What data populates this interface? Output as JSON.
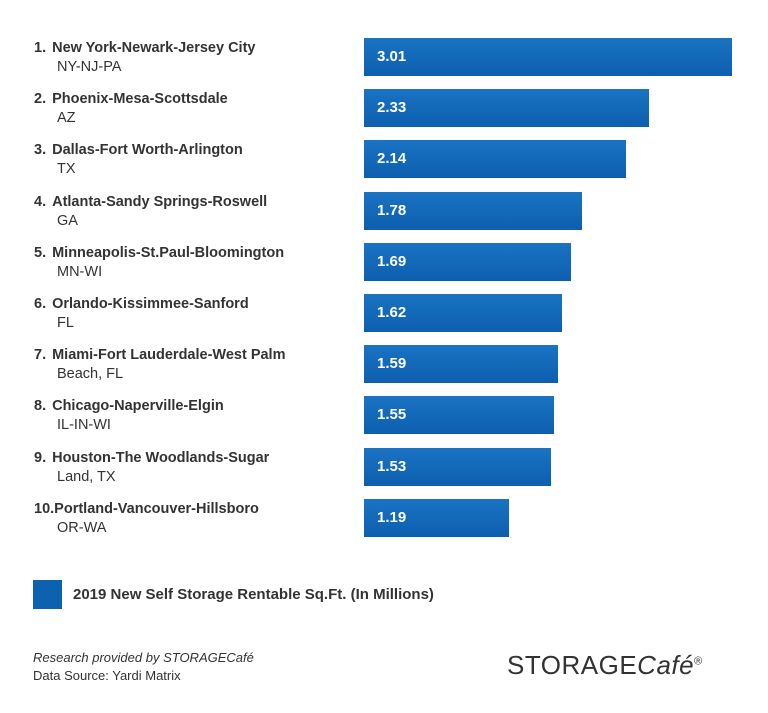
{
  "chart_data": {
    "type": "bar",
    "orientation": "horizontal",
    "categories": [
      {
        "rank": "1.",
        "name": "New York-Newark-Jersey City",
        "sub": "NY-NJ-PA"
      },
      {
        "rank": "2.",
        "name": "Phoenix-Mesa-Scottsdale",
        "sub": "AZ"
      },
      {
        "rank": "3.",
        "name": "Dallas-Fort Worth-Arlington",
        "sub": "TX"
      },
      {
        "rank": "4.",
        "name": "Atlanta-Sandy Springs-Roswell",
        "sub": "GA"
      },
      {
        "rank": "5.",
        "name": "Minneapolis-St.Paul-Bloomington",
        "sub": "MN-WI"
      },
      {
        "rank": "6.",
        "name": "Orlando-Kissimmee-Sanford",
        "sub": "FL"
      },
      {
        "rank": "7.",
        "name": "Miami-Fort Lauderdale-West Palm",
        "sub": "Beach, FL"
      },
      {
        "rank": "8.",
        "name": "Chicago-Naperville-Elgin",
        "sub": "IL-IN-WI"
      },
      {
        "rank": "9.",
        "name": "Houston-The Woodlands-Sugar",
        "sub": "Land, TX"
      },
      {
        "rank": "10.",
        "name": "Portland-Vancouver-Hillsboro",
        "sub": "OR-WA"
      }
    ],
    "values": [
      3.01,
      2.33,
      2.14,
      1.78,
      1.69,
      1.62,
      1.59,
      1.55,
      1.53,
      1.19
    ],
    "value_labels": [
      "3.01",
      "2.33",
      "2.14",
      "1.78",
      "1.69",
      "1.62",
      "1.59",
      "1.55",
      "1.53",
      "1.19"
    ],
    "xlim": [
      0,
      3.01
    ],
    "grid": false,
    "bar_color": "#0d62b0",
    "legend": {
      "label": "2019 New Self Storage Rentable Sq.Ft. (In Millions)",
      "placement": "bottom-left"
    }
  },
  "footer": {
    "credit_line_1": "Research provided by STORAGECafé",
    "credit_line_2": "Data Source: Yardi Matrix",
    "logo_part_1": "STORAGE",
    "logo_part_2": "Café",
    "logo_mark": "®"
  }
}
